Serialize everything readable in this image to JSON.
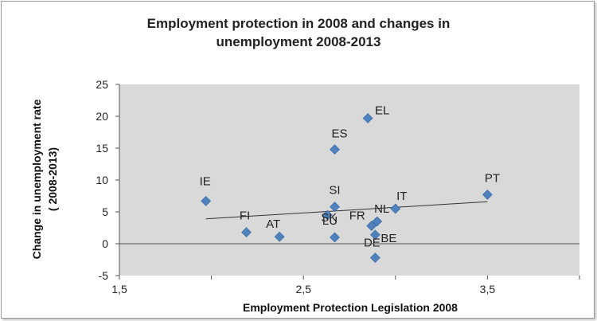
{
  "chart_data": {
    "type": "scatter",
    "title_lines": [
      "Employment protection in 2008 and changes in",
      "unemployment 2008-2013"
    ],
    "xlabel": "Employment Protection Legislation 2008",
    "ylabel_lines": [
      "Change in unemployment rate",
      "( 2008-2013)"
    ],
    "xlim": [
      1.5,
      4
    ],
    "ylim": [
      -5,
      25
    ],
    "x_ticks": [
      1.5,
      2.5,
      3.5
    ],
    "x_tick_labels": [
      "1,5",
      "2,5",
      "3,5"
    ],
    "y_ticks": [
      -5,
      0,
      5,
      10,
      15,
      20,
      25
    ],
    "y_tick_labels": [
      "-5",
      "0",
      "5",
      "10",
      "15",
      "20",
      "25"
    ],
    "grid": false,
    "marker_color": "#4f81bd",
    "plot_background": "#d9d9d9",
    "trendline": {
      "x": [
        1.97,
        3.5
      ],
      "y": [
        3.9,
        6.6
      ],
      "color": "#333333"
    },
    "points": [
      {
        "label": "IE",
        "x": 1.97,
        "y": 6.7
      },
      {
        "label": "FI",
        "x": 2.19,
        "y": 1.8
      },
      {
        "label": "AT",
        "x": 2.37,
        "y": 1.1
      },
      {
        "label": "SK",
        "x": 2.63,
        "y": 4.5
      },
      {
        "label": "SI",
        "x": 2.67,
        "y": 5.8
      },
      {
        "label": "ES",
        "x": 2.67,
        "y": 14.8
      },
      {
        "label": "LU",
        "x": 2.67,
        "y": 1.0
      },
      {
        "label": "EL",
        "x": 2.85,
        "y": 19.7
      },
      {
        "label": "FR",
        "x": 2.87,
        "y": 2.8
      },
      {
        "label": "NL",
        "x": 2.9,
        "y": 3.5
      },
      {
        "label": "BE",
        "x": 2.89,
        "y": 1.4
      },
      {
        "label": "DE",
        "x": 2.89,
        "y": -2.2
      },
      {
        "label": "IT",
        "x": 3.0,
        "y": 5.5
      },
      {
        "label": "PT",
        "x": 3.5,
        "y": 7.7
      }
    ]
  }
}
